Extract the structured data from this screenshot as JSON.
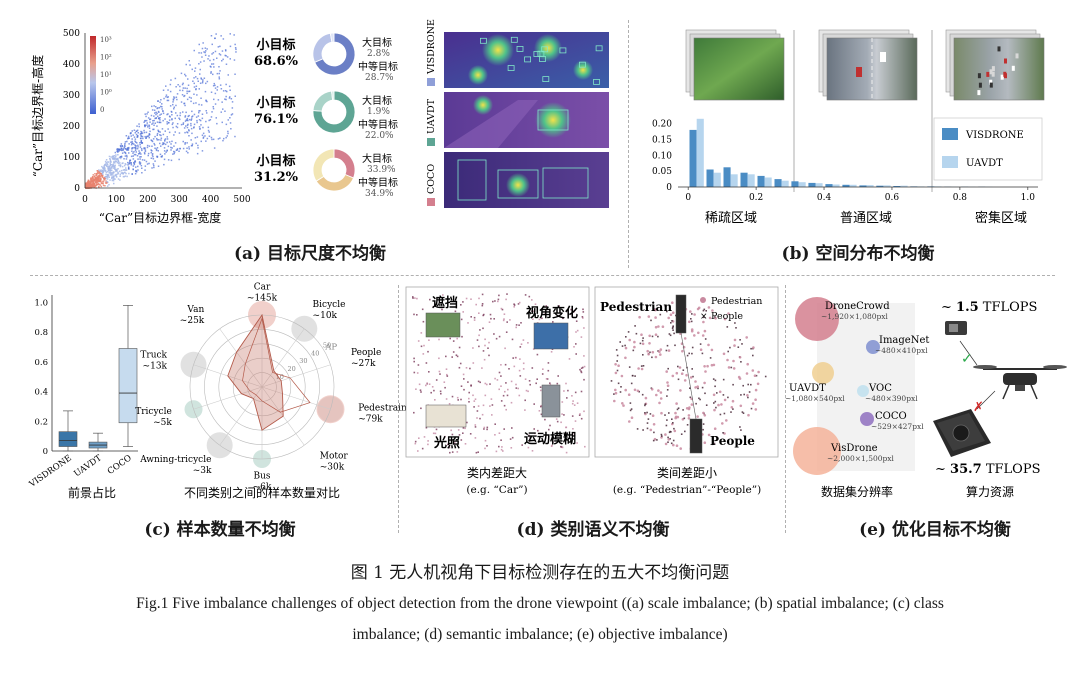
{
  "panel_a": {
    "title": "(a) 目标尺度不均衡",
    "scatter": {
      "xlabel": "“Car”目标边界框-宽度",
      "ylabel": "“Car”目标边界框-高度",
      "xticks": [
        "0",
        "100",
        "200",
        "300",
        "400",
        "500"
      ],
      "yticks": [
        "0",
        "100",
        "200",
        "300",
        "400",
        "500"
      ],
      "colorbar_ticks": [
        "10³",
        "10²",
        "10¹",
        "10⁰",
        "0"
      ],
      "colors": {
        "low": "#e8836f",
        "mid": "#a6b9e8",
        "high": "#4f6fd6"
      }
    },
    "donuts": [
      {
        "label": "小目标",
        "pct": "68.6%",
        "large_label": "大目标",
        "large_pct": "2.8%",
        "medium_label": "中等目标",
        "medium_pct": "28.7%",
        "small": 68.6,
        "medium": 28.7,
        "large": 2.8,
        "color_main": "#6b7fc6",
        "color_medium": "#b8c3e8",
        "color_large": "#dfe4f6"
      },
      {
        "label": "小目标",
        "pct": "76.1%",
        "large_label": "大目标",
        "large_pct": "1.9%",
        "medium_label": "中等目标",
        "medium_pct": "22.0%",
        "small": 76.1,
        "medium": 22.0,
        "large": 1.9,
        "color_main": "#5ea594",
        "color_medium": "#a9d3c8",
        "color_large": "#d9ece7"
      },
      {
        "label": "小目标",
        "pct": "31.2%",
        "large_label": "大目标",
        "large_pct": "33.9%",
        "medium_label": "中等目标",
        "medium_pct": "34.9%",
        "small": 31.2,
        "medium": 34.9,
        "large": 33.9,
        "color_main": "#d47f8e",
        "color_medium": "#e9c78f",
        "color_large": "#f2e6b5"
      }
    ],
    "dataset_labels": [
      "VISDRONE",
      "UAVDT",
      "COCO"
    ]
  },
  "panel_b": {
    "title": "(b) 空间分布不均衡",
    "region_labels": [
      "稀疏区域",
      "普通区域",
      "密集区域"
    ],
    "legend": [
      "VISDRONE",
      "UAVDT"
    ],
    "colors": {
      "visdrone": "#4a8cc4",
      "uavdt": "#b6d5ee"
    }
  },
  "chart_data": [
    {
      "type": "bar",
      "title": "",
      "xlabel": "",
      "ylabel": "",
      "xticks": [
        "0",
        "0.2",
        "0.4",
        "0.6",
        "0.8",
        "1.0"
      ],
      "yticks": [
        "0",
        "0.05",
        "0.10",
        "0.15",
        "0.20"
      ],
      "xlim": [
        -0.03,
        1.03
      ],
      "ylim": [
        0,
        0.23
      ],
      "x": [
        0.025,
        0.075,
        0.125,
        0.175,
        0.225,
        0.275,
        0.325,
        0.375,
        0.425,
        0.475,
        0.525,
        0.575,
        0.625,
        0.675,
        0.725,
        0.775,
        0.825,
        0.875,
        0.925,
        0.975
      ],
      "series": [
        {
          "name": "VISDRONE",
          "values": [
            0.18,
            0.055,
            0.062,
            0.045,
            0.035,
            0.025,
            0.018,
            0.013,
            0.009,
            0.007,
            0.005,
            0.004,
            0.003,
            0.002,
            0.002,
            0.001,
            0.001,
            0.001,
            0.0,
            0.0
          ]
        },
        {
          "name": "UAVDT",
          "values": [
            0.215,
            0.045,
            0.04,
            0.04,
            0.03,
            0.02,
            0.015,
            0.012,
            0.008,
            0.007,
            0.006,
            0.005,
            0.004,
            0.002,
            0.002,
            0.001,
            0.001,
            0.001,
            0.0,
            0.0
          ]
        }
      ],
      "legend_position": "right"
    },
    {
      "type": "box",
      "title": "",
      "xlabel": "前景占比",
      "categories": [
        "VISDRONE",
        "UAVDT",
        "COCO"
      ],
      "yticks": [
        "0",
        "0.2",
        "0.4",
        "0.6",
        "0.8",
        "1.0"
      ],
      "ylim": [
        0,
        1.05
      ],
      "boxes": [
        {
          "name": "VISDRONE",
          "min": 0.0,
          "q1": 0.03,
          "median": 0.07,
          "q3": 0.13,
          "max": 0.27,
          "color": "#3a76a8"
        },
        {
          "name": "UAVDT",
          "min": 0.0,
          "q1": 0.02,
          "median": 0.04,
          "q3": 0.06,
          "max": 0.12,
          "color": "#6e9fc7"
        },
        {
          "name": "COCO",
          "min": 0.03,
          "q1": 0.19,
          "median": 0.39,
          "q3": 0.69,
          "max": 0.98,
          "color": "#c6dbee"
        }
      ]
    },
    {
      "type": "radar",
      "title": "",
      "xlabel": "不同类别之间的样本数量对比",
      "categories": [
        "Car",
        "Bicycle",
        "People",
        "Pedestrain",
        "Motor",
        "Bus",
        "Awning-tricycle",
        "Tricycle",
        "Truck",
        "Van"
      ],
      "values": [
        145,
        10,
        27,
        79,
        30,
        6,
        3,
        5,
        13,
        25
      ],
      "value_labels": [
        "~145k",
        "~10k",
        "~27k",
        "~79k",
        "~30k",
        "~6k",
        "~3k",
        "~5k",
        "~13k",
        "~25k"
      ],
      "ap_values": [
        50,
        14,
        14,
        15,
        25,
        30,
        10,
        15,
        25,
        30
      ],
      "ap_label": "AP",
      "ring_labels": [
        "10",
        "20",
        "30",
        "40",
        "50"
      ]
    }
  ],
  "panel_c": {
    "title": "(c) 样本数量不均衡",
    "box_caption": "前景占比",
    "radar_caption": "不同类别之间的样本数量对比"
  },
  "panel_d": {
    "title": "(d) 类别语义不均衡",
    "left_labels": {
      "occlusion": "遮挡",
      "viewpoint": "视角变化",
      "lighting": "光照",
      "blur": "运动模糊"
    },
    "left_caption": "类内差距大",
    "left_sub": "(e.g. “Car”)",
    "right_labels": {
      "pedestrian": "Pedestrian",
      "people": "People"
    },
    "right_legend": [
      "Pedestrian",
      "People"
    ],
    "right_caption": "类间差距小",
    "right_sub": "(e.g. “Pedestrian”-“People”)"
  },
  "panel_e": {
    "title": "(e) 优化目标不均衡",
    "datasets": [
      {
        "name": "DroneCrowd",
        "res": "~1,920×1,080pxl",
        "color": "#d47f8e"
      },
      {
        "name": "ImageNet",
        "res": "~480×410pxl",
        "color": "#7f8fd0"
      },
      {
        "name": "UAVDT",
        "res": "~1,080×540pxl",
        "color": "#f0cf90"
      },
      {
        "name": "VOC",
        "res": "~480×390pxl",
        "color": "#bfe0ee"
      },
      {
        "name": "COCO",
        "res": "~529×427pxl",
        "color": "#8f70c0"
      },
      {
        "name": "VisDrone",
        "res": "~2,000×1,500pxl",
        "color": "#f4b39a"
      }
    ],
    "left_caption": "数据集分辨率",
    "right_caption": "算力资源",
    "tflops_top": {
      "prefix": "~ ",
      "value": "1.5",
      "unit": " TFLOPS"
    },
    "tflops_bottom": {
      "prefix": "~ ",
      "value": "35.7",
      "unit": " TFLOPS"
    },
    "check_mark": "✓",
    "cross_mark": "✗"
  },
  "caption": {
    "cn": "图 1 无人机视角下目标检测存在的五大不均衡问题",
    "en_line1": "Fig.1  Five imbalance challenges of object detection from the drone viewpoint ((a) scale imbalance; (b) spatial imbalance; (c) class",
    "en_line2": "imbalance; (d) semantic imbalance; (e) objective imbalance)"
  }
}
